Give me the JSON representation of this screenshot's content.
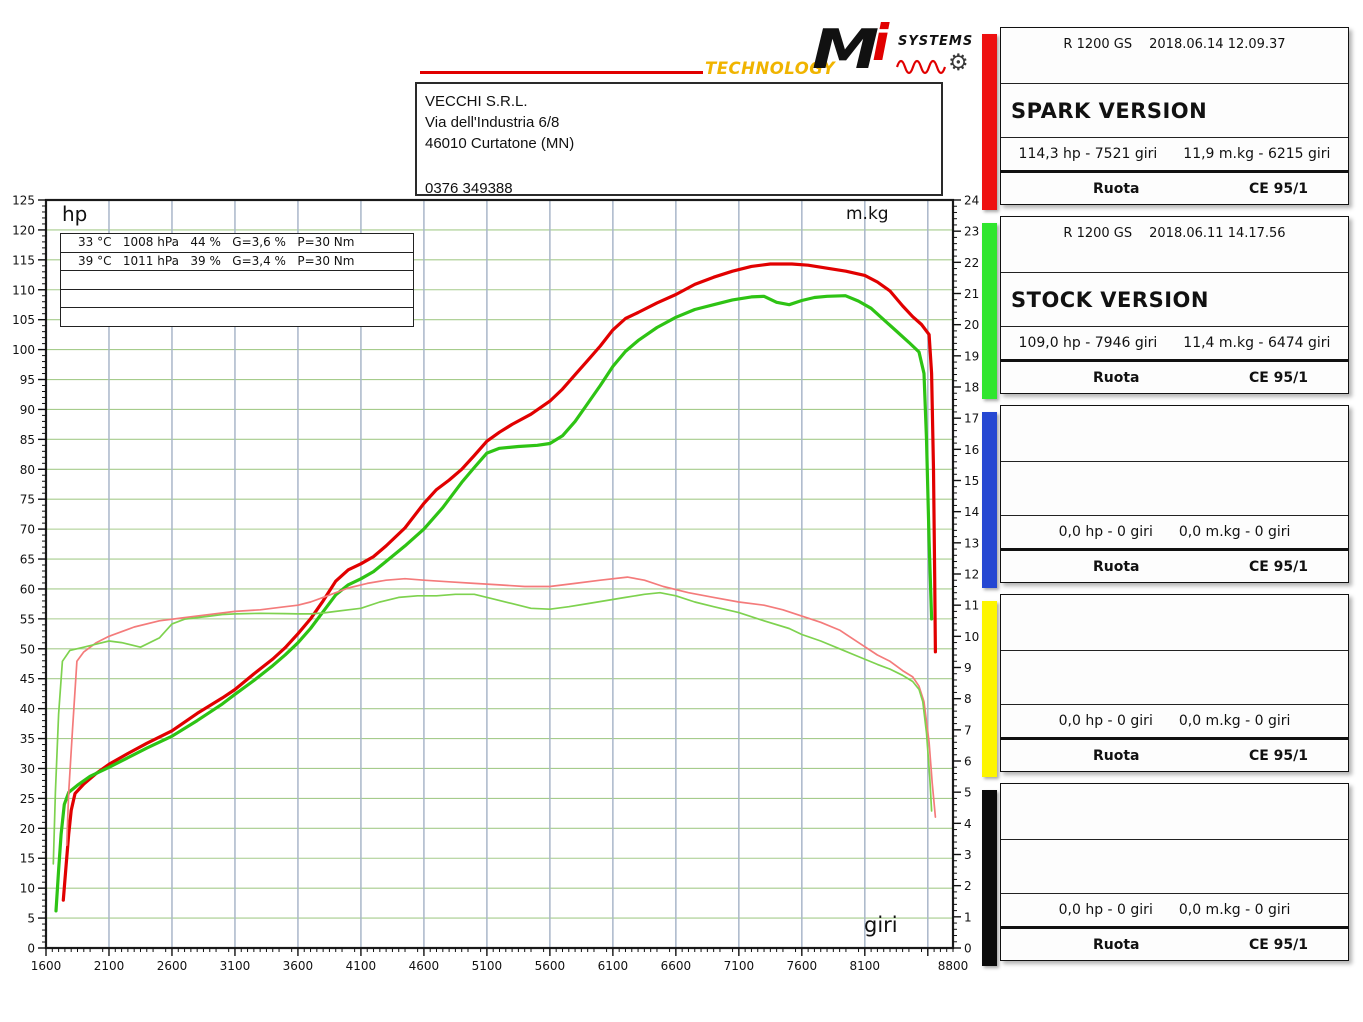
{
  "brand": {
    "technology": "TECHNOLOGY",
    "technology_color": "#f0b400",
    "name_m": "M",
    "name_i": "i",
    "systems": "SYSTEMS",
    "accent_red": "#e10000"
  },
  "dealer": {
    "name": "VECCHI S.R.L.",
    "address": "Via dell'Industria 6/8",
    "city": "46010 Curtatone (MN)",
    "phone": "0376 349388"
  },
  "chart": {
    "hp_label": "hp",
    "mkg_label": "m.kg",
    "giri_label": "giri",
    "legend_rows": [
      "33 °C   1008 hPa   44 %   G=3,6 %   P=30 Nm",
      "39 °C   1011 hPa   39 %   G=3,4 %   P=30 Nm",
      "",
      "",
      ""
    ]
  },
  "chart_data": {
    "type": "line",
    "xlabel": "giri",
    "ylabel_left": "hp",
    "ylabel_right": "m.kg",
    "x_range": [
      1600,
      8800
    ],
    "x_grid_step": 500,
    "x_minor_step": 50,
    "x_tick_labels": [
      1600,
      2100,
      2600,
      3100,
      3600,
      4100,
      4600,
      5100,
      5600,
      6100,
      6600,
      7100,
      7600,
      8100,
      8800
    ],
    "y_left_range": [
      0,
      125
    ],
    "y_left_tick_step": 5,
    "y_left_minor_step": 1,
    "y_right_range": [
      0,
      24
    ],
    "y_right_tick_step": 1,
    "y_right_minor_step": 0.2,
    "grid_h_color": "#a6cc8c",
    "grid_v_color": "#a9b6c9",
    "frame_color": "#1a1a1a",
    "series": [
      {
        "name": "spark-hp",
        "axis": "left",
        "color": "#e10000",
        "width": 3.2,
        "points": [
          [
            1737,
            8
          ],
          [
            1760,
            14
          ],
          [
            1780,
            19
          ],
          [
            1800,
            23
          ],
          [
            1830,
            25.8
          ],
          [
            1900,
            27.4
          ],
          [
            2000,
            29.2
          ],
          [
            2100,
            30.7
          ],
          [
            2250,
            32.5
          ],
          [
            2400,
            34.2
          ],
          [
            2600,
            36.3
          ],
          [
            2800,
            39.2
          ],
          [
            3000,
            41.8
          ],
          [
            3100,
            43.2
          ],
          [
            3250,
            45.8
          ],
          [
            3400,
            48.3
          ],
          [
            3500,
            50.2
          ],
          [
            3600,
            52.5
          ],
          [
            3700,
            55
          ],
          [
            3800,
            58
          ],
          [
            3900,
            61.3
          ],
          [
            4000,
            63.2
          ],
          [
            4100,
            64.2
          ],
          [
            4200,
            65.4
          ],
          [
            4300,
            67.2
          ],
          [
            4450,
            70.2
          ],
          [
            4600,
            74.3
          ],
          [
            4700,
            76.6
          ],
          [
            4800,
            78.2
          ],
          [
            4900,
            80
          ],
          [
            5000,
            82.3
          ],
          [
            5100,
            84.7
          ],
          [
            5200,
            86.2
          ],
          [
            5300,
            87.5
          ],
          [
            5450,
            89.2
          ],
          [
            5600,
            91.4
          ],
          [
            5700,
            93.4
          ],
          [
            5800,
            95.8
          ],
          [
            5900,
            98.2
          ],
          [
            6000,
            100.6
          ],
          [
            6100,
            103.3
          ],
          [
            6200,
            105.2
          ],
          [
            6300,
            106.2
          ],
          [
            6450,
            107.8
          ],
          [
            6600,
            109.2
          ],
          [
            6750,
            110.9
          ],
          [
            6900,
            112.1
          ],
          [
            7050,
            113.1
          ],
          [
            7200,
            113.9
          ],
          [
            7350,
            114.3
          ],
          [
            7521,
            114.3
          ],
          [
            7650,
            114.1
          ],
          [
            7800,
            113.6
          ],
          [
            7950,
            113.1
          ],
          [
            8100,
            112.4
          ],
          [
            8200,
            111.3
          ],
          [
            8300,
            109.8
          ],
          [
            8400,
            107.3
          ],
          [
            8480,
            105.5
          ],
          [
            8550,
            104.2
          ],
          [
            8610,
            102.5
          ],
          [
            8630,
            96
          ],
          [
            8645,
            80
          ],
          [
            8655,
            62
          ],
          [
            8660,
            49.5
          ]
        ]
      },
      {
        "name": "stock-hp",
        "axis": "left",
        "color": "#2ec314",
        "width": 3.2,
        "points": [
          [
            1679,
            6.2
          ],
          [
            1700,
            13
          ],
          [
            1720,
            19
          ],
          [
            1745,
            24
          ],
          [
            1780,
            26
          ],
          [
            1850,
            27.2
          ],
          [
            1950,
            28.7
          ],
          [
            2100,
            30.2
          ],
          [
            2250,
            31.8
          ],
          [
            2400,
            33.4
          ],
          [
            2600,
            35.4
          ],
          [
            2800,
            38
          ],
          [
            3000,
            40.8
          ],
          [
            3100,
            42.4
          ],
          [
            3250,
            44.7
          ],
          [
            3400,
            47.2
          ],
          [
            3500,
            49
          ],
          [
            3600,
            51
          ],
          [
            3700,
            53.4
          ],
          [
            3800,
            56.2
          ],
          [
            3900,
            59
          ],
          [
            4000,
            60.7
          ],
          [
            4100,
            61.7
          ],
          [
            4200,
            62.9
          ],
          [
            4300,
            64.6
          ],
          [
            4450,
            67.2
          ],
          [
            4600,
            70
          ],
          [
            4750,
            73.6
          ],
          [
            4900,
            77.8
          ],
          [
            5000,
            80.3
          ],
          [
            5100,
            82.7
          ],
          [
            5200,
            83.5
          ],
          [
            5350,
            83.8
          ],
          [
            5500,
            84
          ],
          [
            5600,
            84.3
          ],
          [
            5700,
            85.6
          ],
          [
            5800,
            88
          ],
          [
            5900,
            91
          ],
          [
            6000,
            94
          ],
          [
            6100,
            97.2
          ],
          [
            6200,
            99.7
          ],
          [
            6300,
            101.5
          ],
          [
            6450,
            103.7
          ],
          [
            6600,
            105.4
          ],
          [
            6750,
            106.7
          ],
          [
            6900,
            107.5
          ],
          [
            7050,
            108.3
          ],
          [
            7200,
            108.8
          ],
          [
            7300,
            108.9
          ],
          [
            7400,
            107.9
          ],
          [
            7500,
            107.5
          ],
          [
            7600,
            108.2
          ],
          [
            7700,
            108.7
          ],
          [
            7800,
            108.9
          ],
          [
            7946,
            109
          ],
          [
            8050,
            108.1
          ],
          [
            8150,
            106.9
          ],
          [
            8250,
            105
          ],
          [
            8350,
            103.1
          ],
          [
            8450,
            101.2
          ],
          [
            8530,
            99.6
          ],
          [
            8570,
            96
          ],
          [
            8590,
            85
          ],
          [
            8610,
            68
          ],
          [
            8630,
            55
          ]
        ]
      },
      {
        "name": "spark-torque",
        "axis": "right",
        "color": "#f47b7b",
        "width": 1.7,
        "points": [
          [
            1764,
            3.3
          ],
          [
            1780,
            5
          ],
          [
            1810,
            7
          ],
          [
            1845,
            9.2
          ],
          [
            1900,
            9.5
          ],
          [
            2000,
            9.8
          ],
          [
            2100,
            10
          ],
          [
            2300,
            10.3
          ],
          [
            2500,
            10.5
          ],
          [
            2700,
            10.6
          ],
          [
            2900,
            10.7
          ],
          [
            3100,
            10.8
          ],
          [
            3300,
            10.85
          ],
          [
            3500,
            10.95
          ],
          [
            3600,
            11
          ],
          [
            3700,
            11.1
          ],
          [
            3800,
            11.25
          ],
          [
            3900,
            11.4
          ],
          [
            4000,
            11.55
          ],
          [
            4150,
            11.7
          ],
          [
            4300,
            11.8
          ],
          [
            4450,
            11.85
          ],
          [
            4600,
            11.8
          ],
          [
            4800,
            11.75
          ],
          [
            5000,
            11.7
          ],
          [
            5200,
            11.65
          ],
          [
            5400,
            11.6
          ],
          [
            5600,
            11.6
          ],
          [
            5800,
            11.7
          ],
          [
            6000,
            11.8
          ],
          [
            6215,
            11.9
          ],
          [
            6350,
            11.8
          ],
          [
            6500,
            11.6
          ],
          [
            6700,
            11.4
          ],
          [
            6900,
            11.25
          ],
          [
            7100,
            11.1
          ],
          [
            7300,
            11
          ],
          [
            7450,
            10.85
          ],
          [
            7600,
            10.65
          ],
          [
            7750,
            10.45
          ],
          [
            7900,
            10.2
          ],
          [
            8050,
            9.8
          ],
          [
            8200,
            9.4
          ],
          [
            8300,
            9.2
          ],
          [
            8400,
            8.9
          ],
          [
            8480,
            8.7
          ],
          [
            8530,
            8.4
          ],
          [
            8570,
            7.9
          ],
          [
            8610,
            6.6
          ],
          [
            8635,
            5.3
          ],
          [
            8660,
            4.2
          ]
        ]
      },
      {
        "name": "stock-torque",
        "axis": "right",
        "color": "#7ed24f",
        "width": 1.7,
        "points": [
          [
            1658,
            2.7
          ],
          [
            1675,
            5
          ],
          [
            1700,
            7.5
          ],
          [
            1730,
            9.2
          ],
          [
            1790,
            9.55
          ],
          [
            1900,
            9.65
          ],
          [
            2000,
            9.75
          ],
          [
            2100,
            9.85
          ],
          [
            2200,
            9.8
          ],
          [
            2350,
            9.65
          ],
          [
            2500,
            9.95
          ],
          [
            2600,
            10.4
          ],
          [
            2700,
            10.55
          ],
          [
            2800,
            10.6
          ],
          [
            2900,
            10.65
          ],
          [
            3000,
            10.7
          ],
          [
            3100,
            10.72
          ],
          [
            3300,
            10.74
          ],
          [
            3500,
            10.73
          ],
          [
            3600,
            10.72
          ],
          [
            3700,
            10.72
          ],
          [
            3800,
            10.75
          ],
          [
            3900,
            10.8
          ],
          [
            4000,
            10.85
          ],
          [
            4100,
            10.9
          ],
          [
            4250,
            11.1
          ],
          [
            4400,
            11.25
          ],
          [
            4550,
            11.3
          ],
          [
            4700,
            11.3
          ],
          [
            4850,
            11.35
          ],
          [
            5000,
            11.35
          ],
          [
            5150,
            11.2
          ],
          [
            5300,
            11.05
          ],
          [
            5450,
            10.9
          ],
          [
            5600,
            10.87
          ],
          [
            5750,
            10.95
          ],
          [
            5900,
            11.05
          ],
          [
            6050,
            11.15
          ],
          [
            6200,
            11.25
          ],
          [
            6350,
            11.35
          ],
          [
            6474,
            11.4
          ],
          [
            6600,
            11.3
          ],
          [
            6750,
            11.1
          ],
          [
            6900,
            10.95
          ],
          [
            7100,
            10.76
          ],
          [
            7300,
            10.5
          ],
          [
            7500,
            10.25
          ],
          [
            7600,
            10.06
          ],
          [
            7750,
            9.85
          ],
          [
            7900,
            9.6
          ],
          [
            8050,
            9.35
          ],
          [
            8200,
            9.1
          ],
          [
            8300,
            8.95
          ],
          [
            8400,
            8.75
          ],
          [
            8480,
            8.55
          ],
          [
            8530,
            8.3
          ],
          [
            8560,
            7.9
          ],
          [
            8590,
            6.9
          ],
          [
            8615,
            5.5
          ],
          [
            8630,
            4.4
          ]
        ]
      }
    ]
  },
  "panels": [
    {
      "bar_color": "#ee1010",
      "model": "R 1200 GS",
      "datetime": "2018.06.14 12.09.37",
      "title": "SPARK VERSION",
      "stat_hp": "114,3 hp - 7521 giri",
      "stat_torque": "11,9 m.kg - 6215 giri",
      "footer_left": "Ruota",
      "footer_right": "CE 95/1"
    },
    {
      "bar_color": "#30e62e",
      "model": "R 1200 GS",
      "datetime": "2018.06.11 14.17.56",
      "title": "STOCK VERSION",
      "stat_hp": "109,0 hp - 7946 giri",
      "stat_torque": "11,4 m.kg - 6474 giri",
      "footer_left": "Ruota",
      "footer_right": "CE 95/1"
    },
    {
      "bar_color": "#2547d2",
      "model": "",
      "datetime": "",
      "title": "",
      "stat_hp": "0,0 hp - 0 giri",
      "stat_torque": "0,0 m.kg - 0 giri",
      "footer_left": "Ruota",
      "footer_right": "CE 95/1"
    },
    {
      "bar_color": "#fdf500",
      "model": "",
      "datetime": "",
      "title": "",
      "stat_hp": "0,0 hp - 0 giri",
      "stat_torque": "0,0 m.kg - 0 giri",
      "footer_left": "Ruota",
      "footer_right": "CE 95/1"
    },
    {
      "bar_color": "#0b0b0b",
      "model": "",
      "datetime": "",
      "title": "",
      "stat_hp": "0,0 hp - 0 giri",
      "stat_torque": "0,0 m.kg - 0 giri",
      "footer_left": "Ruota",
      "footer_right": "CE 95/1"
    }
  ]
}
